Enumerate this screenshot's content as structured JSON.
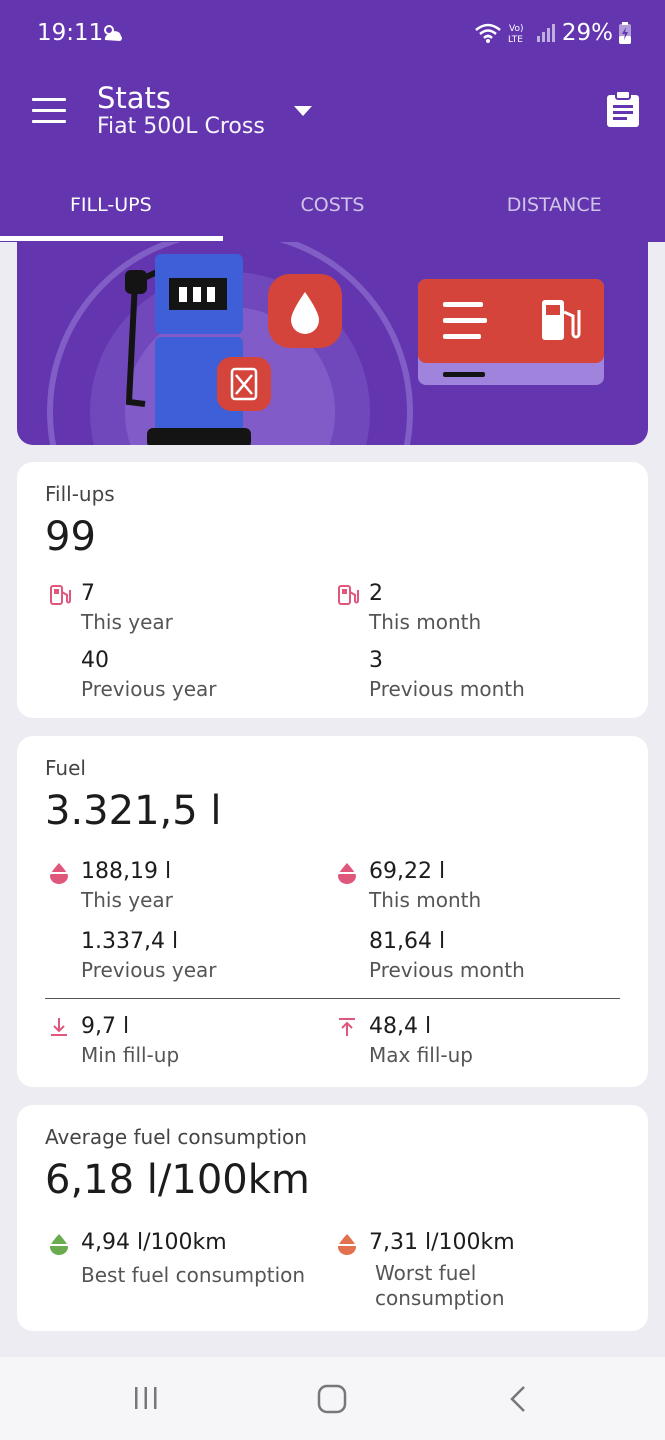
{
  "status": {
    "time": "19:11",
    "battery": "29%",
    "network": "LTE"
  },
  "toolbar": {
    "title": "Stats",
    "subtitle": "Fiat 500L Cross"
  },
  "tabs": [
    {
      "label": "FILL-UPS",
      "active": true
    },
    {
      "label": "COSTS",
      "active": false
    },
    {
      "label": "DISTANCE",
      "active": false
    }
  ],
  "fillups": {
    "label": "Fill-ups",
    "total": "99",
    "this_year_value": "7",
    "this_year_label": "This year",
    "this_month_value": "2",
    "this_month_label": "This month",
    "prev_year_value": "40",
    "prev_year_label": "Previous year",
    "prev_month_value": "3",
    "prev_month_label": "Previous month"
  },
  "fuel": {
    "label": "Fuel",
    "total": "3.321,5 l",
    "this_year_value": "188,19 l",
    "this_year_label": "This year",
    "this_month_value": "69,22 l",
    "this_month_label": "This month",
    "prev_year_value": "1.337,4 l",
    "prev_year_label": "Previous year",
    "prev_month_value": "81,64 l",
    "prev_month_label": "Previous month",
    "min_value": "9,7 l",
    "min_label": "Min fill-up",
    "max_value": "48,4 l",
    "max_label": "Max fill-up"
  },
  "consumption": {
    "label": "Average fuel consumption",
    "total": "6,18 l/100km",
    "best_value": "4,94 l/100km",
    "best_label": "Best fuel consumption",
    "worst_value": "7,31 l/100km",
    "worst_label_line1": "Worst fuel",
    "worst_label_line2": "consumption"
  },
  "colors": {
    "primary": "#6336b0",
    "accent_pink": "#e0577c",
    "good_green": "#6aab4f",
    "bad_orange": "#e2714f"
  }
}
